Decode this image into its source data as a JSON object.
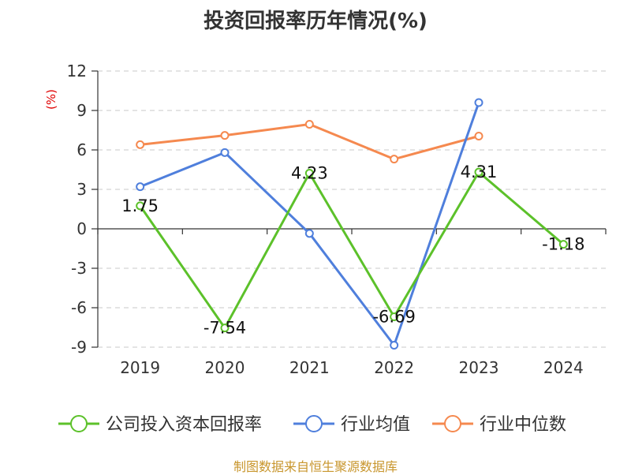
{
  "title": "投资回报率历年情况(%)",
  "source": "制图数据来自恒生聚源数据库",
  "chart_data": {
    "type": "line",
    "title": "投资回报率历年情况(%)",
    "ylabel": "(%)",
    "xlabel": "",
    "categories": [
      "2019",
      "2020",
      "2021",
      "2022",
      "2023",
      "2024"
    ],
    "ylim": [
      -9,
      12
    ],
    "yticks": [
      12,
      9,
      6,
      3,
      0,
      -3,
      -6,
      -9
    ],
    "ytick_labels": [
      "12",
      "9",
      "6",
      "3",
      "0",
      "-3",
      "-6",
      "-9"
    ],
    "grid": true,
    "legend_position": "bottom",
    "series": [
      {
        "name": "公司投入资本回报率",
        "color": "#5cc12a",
        "values": [
          1.75,
          -7.54,
          4.23,
          -6.69,
          4.31,
          -1.18
        ],
        "labels": [
          "1.75",
          "-7.54",
          "4.23",
          "-6.69",
          "4.31",
          "-1.18"
        ]
      },
      {
        "name": "行业均值",
        "color": "#4f7fdc",
        "values": [
          3.2,
          5.8,
          -0.35,
          -8.85,
          9.6,
          null
        ]
      },
      {
        "name": "行业中位数",
        "color": "#f5894f",
        "values": [
          6.4,
          7.1,
          7.95,
          5.3,
          7.05,
          null
        ]
      }
    ]
  }
}
